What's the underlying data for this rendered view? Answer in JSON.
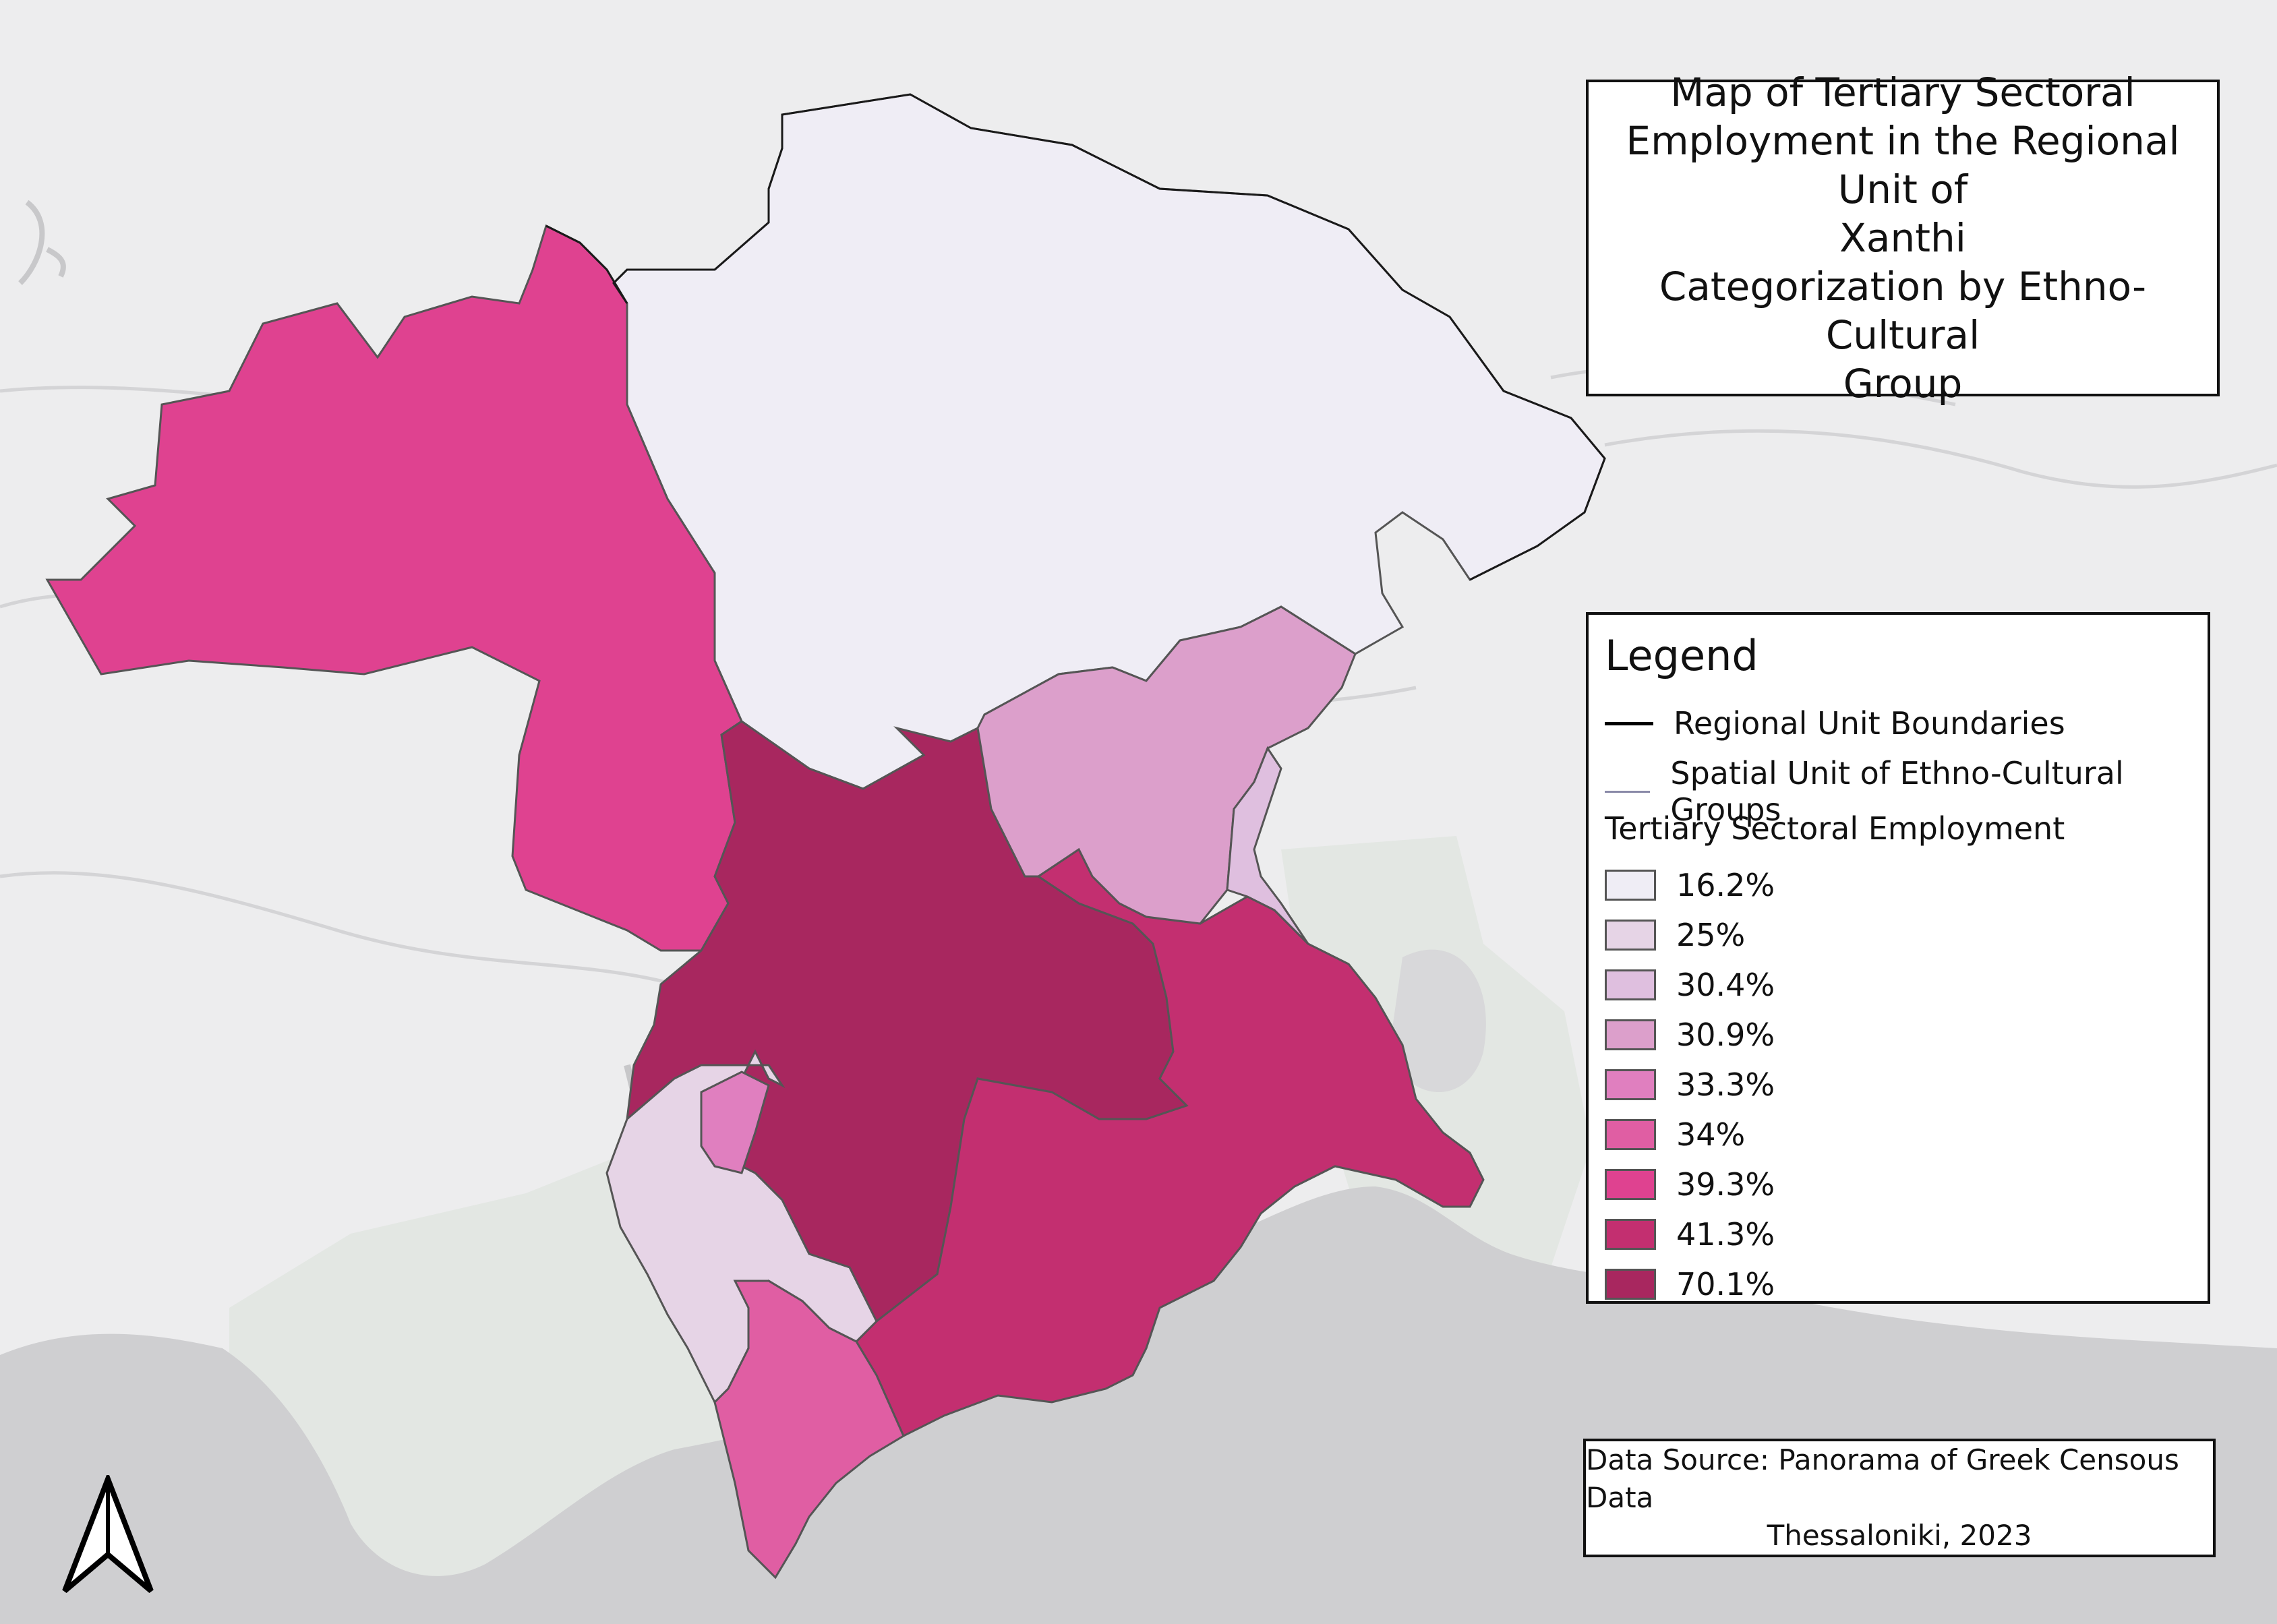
{
  "title": {
    "lines": [
      "Map of Tertiary Sectoral",
      "Employment in the Regional Unit of",
      "Xanthi"
    ],
    "subtitle_lines": [
      "Categorization by Ethno-Cultural",
      "Group"
    ]
  },
  "legend": {
    "heading": "Legend",
    "boundary_items": [
      {
        "label": "Regional Unit Boundaries",
        "color": "#000000"
      },
      {
        "label": "Spatial Unit of Ethno-Cultural Groups",
        "color": "#8a8aa8"
      }
    ],
    "classes_heading": "Tertiary Sectoral Employment",
    "classes": [
      {
        "label": "16.2%",
        "value": 16.2,
        "color": "#efedf5"
      },
      {
        "label": "25%",
        "value": 25.0,
        "color": "#e6d4e6"
      },
      {
        "label": "30.4%",
        "value": 30.4,
        "color": "#dfbfdf"
      },
      {
        "label": "30.9%",
        "value": 30.9,
        "color": "#dc9fcb"
      },
      {
        "label": "33.3%",
        "value": 33.3,
        "color": "#e07fbf"
      },
      {
        "label": "34%",
        "value": 34.0,
        "color": "#e05ea3"
      },
      {
        "label": "39.3%",
        "value": 39.3,
        "color": "#df4290"
      },
      {
        "label": "41.3%",
        "value": 41.3,
        "color": "#c32f70"
      },
      {
        "label": "70.1%",
        "value": 70.1,
        "color": "#a8275f"
      }
    ]
  },
  "source": {
    "lines": [
      "Data Source: Panorama of Greek Censous Data",
      "Thessaloniki, 2023"
    ]
  },
  "map": {
    "base_land_color": "#ededee",
    "sea_color": "#cfcfd1",
    "green_area_color": "#e1e6e1"
  }
}
